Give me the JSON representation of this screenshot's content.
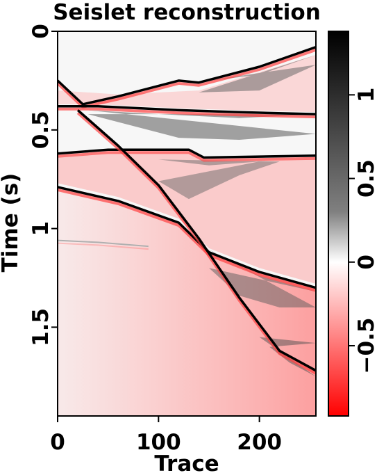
{
  "chart_data": {
    "type": "heatmap",
    "title": "Seislet reconstruction",
    "xlabel": "Trace",
    "ylabel": "Time (s)",
    "xlim": [
      0,
      256
    ],
    "ylim": [
      0,
      1.95
    ],
    "y_inverted": true,
    "xticks": [
      0,
      100,
      200
    ],
    "xtick_labels": [
      "0",
      "100",
      "200"
    ],
    "yticks": [
      0,
      0.5,
      1,
      1.5
    ],
    "ytick_labels": [
      "0",
      "0.5",
      "1",
      "1.5"
    ],
    "grid": false,
    "colorbar": {
      "ticks": [
        1,
        0.5,
        0,
        -0.5
      ],
      "tick_labels": [
        "1",
        "0.5",
        "0",
        "−0.5"
      ],
      "range": [
        -0.92,
        1.38
      ],
      "colormap": [
        {
          "value": 1.38,
          "color": "#000000"
        },
        {
          "value": 0.3,
          "color": "#808080"
        },
        {
          "value": 0.0,
          "color": "#ffffff"
        },
        {
          "value": -0.92,
          "color": "#ff0000"
        }
      ]
    },
    "events": [
      {
        "label": "event-1",
        "points": [
          [
            0,
            0.25
          ],
          [
            25,
            0.37
          ],
          [
            60,
            0.33
          ],
          [
            120,
            0.25
          ],
          [
            140,
            0.26
          ],
          [
            200,
            0.18
          ],
          [
            256,
            0.08
          ]
        ]
      },
      {
        "label": "event-2",
        "points": [
          [
            0,
            0.38
          ],
          [
            40,
            0.38
          ],
          [
            120,
            0.4
          ],
          [
            180,
            0.41
          ],
          [
            256,
            0.42
          ]
        ]
      },
      {
        "label": "event-3",
        "points": [
          [
            0,
            0.62
          ],
          [
            50,
            0.6
          ],
          [
            130,
            0.6
          ],
          [
            145,
            0.64
          ],
          [
            256,
            0.63
          ]
        ]
      },
      {
        "label": "event-4",
        "points": [
          [
            0,
            0.79
          ],
          [
            60,
            0.86
          ],
          [
            120,
            0.97
          ],
          [
            150,
            1.12
          ],
          [
            200,
            1.22
          ],
          [
            256,
            1.3
          ]
        ]
      },
      {
        "label": "event-5",
        "points": [
          [
            20,
            0.4
          ],
          [
            60,
            0.58
          ],
          [
            100,
            0.78
          ],
          [
            140,
            1.05
          ],
          [
            180,
            1.35
          ],
          [
            220,
            1.62
          ],
          [
            256,
            1.72
          ]
        ]
      },
      {
        "label": "event-6",
        "points": [
          [
            0,
            1.06
          ],
          [
            40,
            1.07
          ],
          [
            90,
            1.09
          ]
        ]
      }
    ]
  }
}
